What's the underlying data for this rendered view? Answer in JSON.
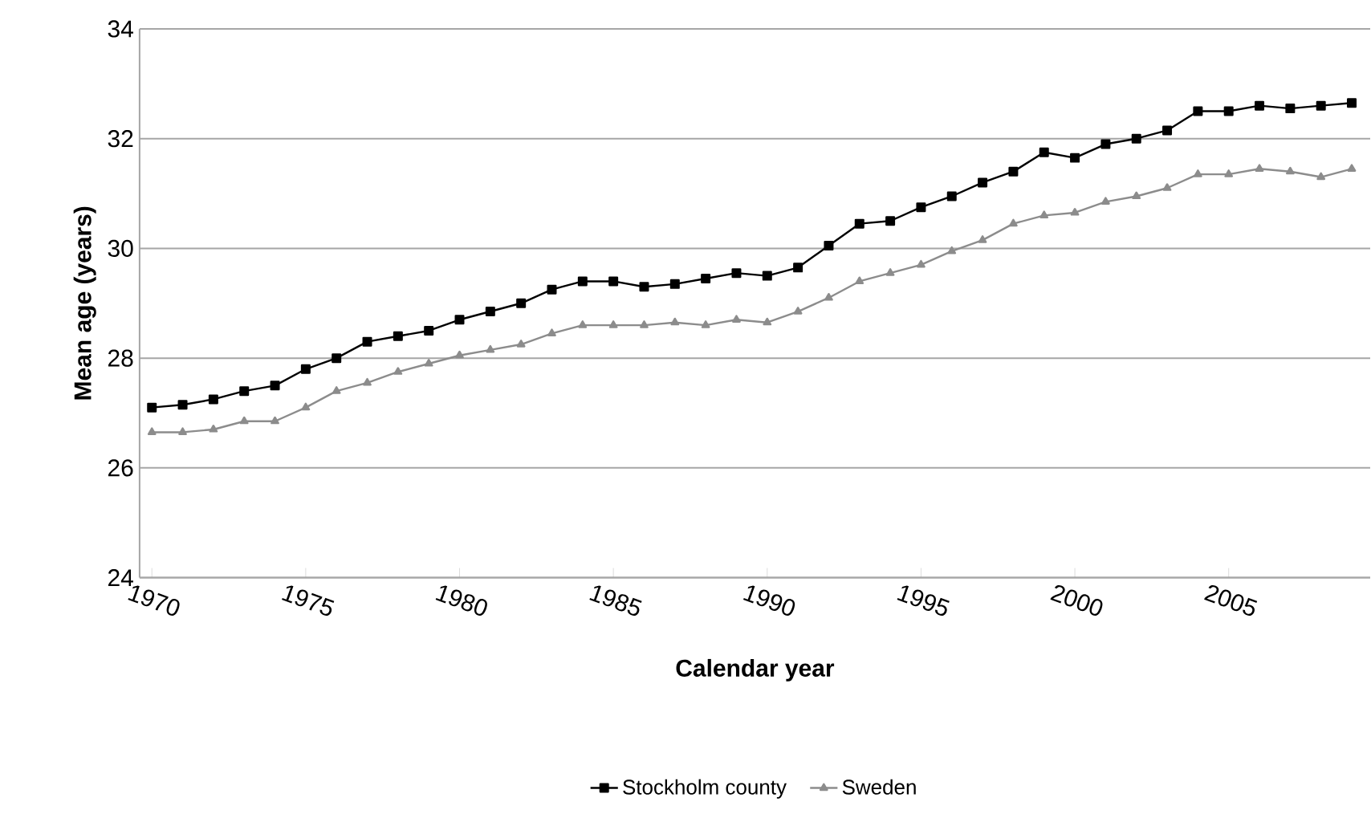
{
  "chart_data": {
    "type": "line",
    "xlabel": "Calendar year",
    "ylabel": "Mean age (years)",
    "x": [
      1970,
      1971,
      1972,
      1973,
      1974,
      1975,
      1976,
      1977,
      1978,
      1979,
      1980,
      1981,
      1982,
      1983,
      1984,
      1985,
      1986,
      1987,
      1988,
      1989,
      1990,
      1991,
      1992,
      1993,
      1994,
      1995,
      1996,
      1997,
      1998,
      1999,
      2000,
      2001,
      2002,
      2003,
      2004,
      2005,
      2006,
      2007,
      2008,
      2009
    ],
    "series": [
      {
        "name": "Stockholm county",
        "color": "#000000",
        "marker": "square",
        "values": [
          27.1,
          27.15,
          27.25,
          27.4,
          27.5,
          27.8,
          28.0,
          28.3,
          28.4,
          28.5,
          28.7,
          28.85,
          29.0,
          29.25,
          29.4,
          29.4,
          29.3,
          29.35,
          29.45,
          29.55,
          29.5,
          29.65,
          30.05,
          30.45,
          30.5,
          30.75,
          30.95,
          31.2,
          31.4,
          31.75,
          31.65,
          31.9,
          32.0,
          32.15,
          32.5,
          32.5,
          32.6,
          32.55,
          32.6,
          32.65
        ]
      },
      {
        "name": "Sweden",
        "color": "#8c8c8c",
        "marker": "triangle",
        "values": [
          26.65,
          26.65,
          26.7,
          26.85,
          26.85,
          27.1,
          27.4,
          27.55,
          27.75,
          27.9,
          28.05,
          28.15,
          28.25,
          28.45,
          28.6,
          28.6,
          28.6,
          28.65,
          28.6,
          28.7,
          28.65,
          28.85,
          29.1,
          29.4,
          29.55,
          29.7,
          29.95,
          30.15,
          30.45,
          30.6,
          30.65,
          30.85,
          30.95,
          31.1,
          31.35,
          31.35,
          31.45,
          31.4,
          31.3,
          31.45
        ]
      }
    ],
    "xlim": [
      1969.6,
      2009.6
    ],
    "xticks": [
      1970,
      1975,
      1980,
      1985,
      1990,
      1995,
      2000,
      2005
    ],
    "ylim": [
      24,
      34
    ],
    "yticks": [
      24,
      26,
      28,
      30,
      32,
      34
    ],
    "grid": "y",
    "legend": "bottom",
    "line_style": "solid"
  }
}
